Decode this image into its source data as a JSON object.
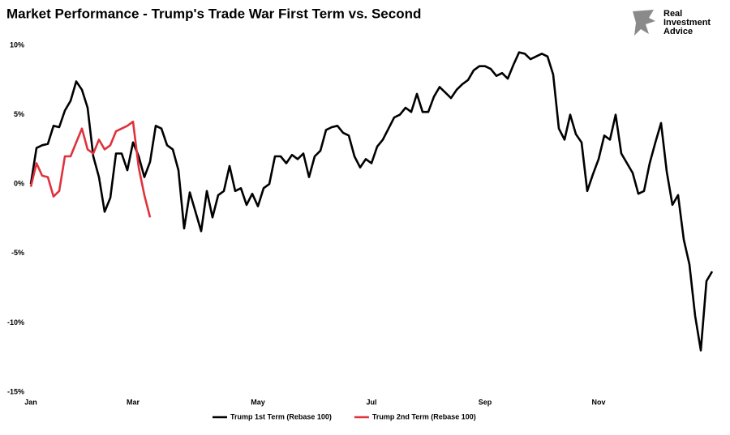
{
  "chart_data": {
    "type": "line",
    "title": "Market Performance - Trump's Trade War First Term vs. Second",
    "logo": [
      "Real",
      "Investment",
      "Advice"
    ],
    "categories": [
      "Jan",
      null,
      null,
      null,
      null,
      null,
      null,
      null,
      null,
      null,
      null,
      null,
      null,
      null,
      null,
      null,
      null,
      null,
      "Mar",
      null,
      null,
      null,
      null,
      null,
      null,
      null,
      null,
      null,
      null,
      null,
      null,
      null,
      null,
      null,
      null,
      null,
      null,
      null,
      null,
      null,
      "May",
      null,
      null,
      null,
      null,
      null,
      null,
      null,
      null,
      null,
      null,
      null,
      null,
      null,
      null,
      null,
      null,
      null,
      null,
      null,
      "Jul",
      null,
      null,
      null,
      null,
      null,
      null,
      null,
      null,
      null,
      null,
      null,
      null,
      null,
      null,
      null,
      null,
      null,
      null,
      null,
      "Sep",
      null,
      null,
      null,
      null,
      null,
      null,
      null,
      null,
      null,
      null,
      null,
      null,
      null,
      null,
      null,
      null,
      null,
      null,
      null,
      "Nov",
      null,
      null,
      null,
      null,
      null,
      null,
      null,
      null,
      null,
      null,
      null,
      null,
      null,
      null,
      null,
      null,
      null,
      null,
      null,
      null
    ],
    "series": [
      {
        "name": "Trump 1st Term (Rebase 100)",
        "color": "#000000",
        "values": [
          0,
          2.6,
          2.8,
          2.9,
          4.2,
          4.1,
          5.3,
          6.0,
          7.4,
          6.8,
          5.5,
          2.0,
          0.5,
          -2.0,
          -1.0,
          2.2,
          2.2,
          1.0,
          3.0,
          2.0,
          0.5,
          1.6,
          4.2,
          4.0,
          2.8,
          2.5,
          1.0,
          -3.2,
          -0.6,
          -2.0,
          -3.4,
          -0.5,
          -2.4,
          -0.8,
          -0.5,
          1.3,
          -0.5,
          -0.3,
          -1.5,
          -0.7,
          -1.6,
          -0.3,
          0,
          2.0,
          2.0,
          1.5,
          2.1,
          1.8,
          2.2,
          0.5,
          2.0,
          2.4,
          3.9,
          4.1,
          4.2,
          3.7,
          3.5,
          2.0,
          1.2,
          1.8,
          1.5,
          2.7,
          3.2,
          4.0,
          4.8,
          5.0,
          5.5,
          5.2,
          6.5,
          5.2,
          5.2,
          6.3,
          7.0,
          6.6,
          6.2,
          6.8,
          7.2,
          7.5,
          8.2,
          8.5,
          8.5,
          8.3,
          7.8,
          8.0,
          7.6,
          8.6,
          9.5,
          9.4,
          9.0,
          9.2,
          9.4,
          9.2,
          7.9,
          4.0,
          3.2,
          5.0,
          3.6,
          3.0,
          -0.5,
          0.7,
          1.8,
          3.5,
          3.2,
          5.0,
          2.2,
          1.5,
          0.8,
          -0.7,
          -0.5,
          1.5,
          3.0,
          4.4,
          0.9,
          -1.5,
          -0.8,
          -4.0,
          -5.8,
          -9.5,
          -12.0,
          -7.0,
          -6.3
        ]
      },
      {
        "name": "Trump 2nd Term (Rebase 100)",
        "color": "#e0323c",
        "values": [
          -0.2,
          1.5,
          0.6,
          0.5,
          -0.9,
          -0.5,
          2.0,
          2.0,
          3.0,
          4.0,
          2.5,
          2.2,
          3.2,
          2.5,
          2.8,
          3.8,
          4.0,
          4.2,
          4.5,
          1.2,
          -0.8,
          -2.4,
          null,
          null,
          null,
          null,
          null,
          null,
          null,
          null,
          null,
          null,
          null,
          null,
          null,
          null,
          null,
          null,
          null,
          null,
          null,
          null,
          null,
          null,
          null,
          null,
          null,
          null,
          null,
          null,
          null,
          null,
          null,
          null,
          null,
          null,
          null,
          null,
          null,
          null,
          null,
          null,
          null,
          null,
          null,
          null,
          null,
          null,
          null,
          null,
          null,
          null,
          null,
          null,
          null,
          null,
          null,
          null,
          null,
          null,
          null,
          null,
          null,
          null,
          null,
          null,
          null,
          null,
          null,
          null,
          null,
          null,
          null,
          null,
          null,
          null,
          null,
          null,
          null,
          null,
          null,
          null,
          null,
          null,
          null,
          null,
          null,
          null,
          null,
          null,
          null,
          null,
          null,
          null,
          null,
          null,
          null,
          null,
          null,
          null,
          null
        ]
      }
    ],
    "ylim": [
      -15,
      10
    ],
    "yticks": [
      {
        "value": -15,
        "label": "-15%"
      },
      {
        "value": -10,
        "label": "-10%"
      },
      {
        "value": -5,
        "label": "-5%"
      },
      {
        "value": 0,
        "label": "0%"
      },
      {
        "value": 5,
        "label": "5%"
      },
      {
        "value": 10,
        "label": "10%"
      }
    ],
    "grid": false,
    "legend": "bottom"
  }
}
